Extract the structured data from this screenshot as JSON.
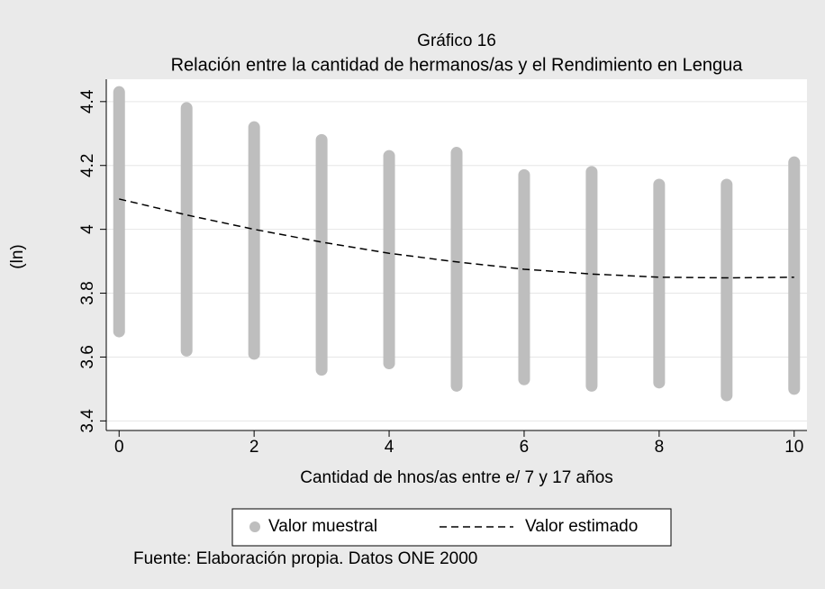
{
  "chart_data": {
    "type": "scatter",
    "title": "Gráfico 16",
    "subtitle": "Relación entre la cantidad de hermanos/as y el Rendimiento en Lengua",
    "x_label": "Cantidad de hnos/as entre e/ 7 y 17 años",
    "y_label": "(ln)",
    "note": "Fuente: Elaboración propia. Datos ONE 2000",
    "xlim": [
      -0.19,
      10.19
    ],
    "ylim": [
      3.37,
      4.47
    ],
    "xticks": [
      0,
      2,
      4,
      6,
      8,
      10
    ],
    "yticks": [
      3.4,
      3.6,
      3.8,
      4,
      4.2,
      4.4
    ],
    "grid": true,
    "legend": "bottom",
    "series": [
      {
        "name": "Valor muestral",
        "color": "#bebebe",
        "mark": "range",
        "x": [
          0,
          1,
          2,
          3,
          4,
          5,
          6,
          7,
          8,
          9,
          10
        ],
        "low": [
          3.68,
          3.62,
          3.61,
          3.56,
          3.58,
          3.51,
          3.53,
          3.51,
          3.52,
          3.48,
          3.5
        ],
        "high": [
          4.43,
          4.38,
          4.32,
          4.28,
          4.23,
          4.24,
          4.17,
          4.18,
          4.14,
          4.14,
          4.21
        ]
      },
      {
        "name": "Valor estimado",
        "color": "#000000",
        "mark": "dashed-line",
        "x": [
          0,
          1,
          2,
          3,
          4,
          5,
          6,
          7,
          8,
          9,
          10
        ],
        "values": [
          4.095,
          4.045,
          4.0,
          3.96,
          3.925,
          3.898,
          3.875,
          3.86,
          3.85,
          3.848,
          3.85
        ]
      }
    ]
  }
}
